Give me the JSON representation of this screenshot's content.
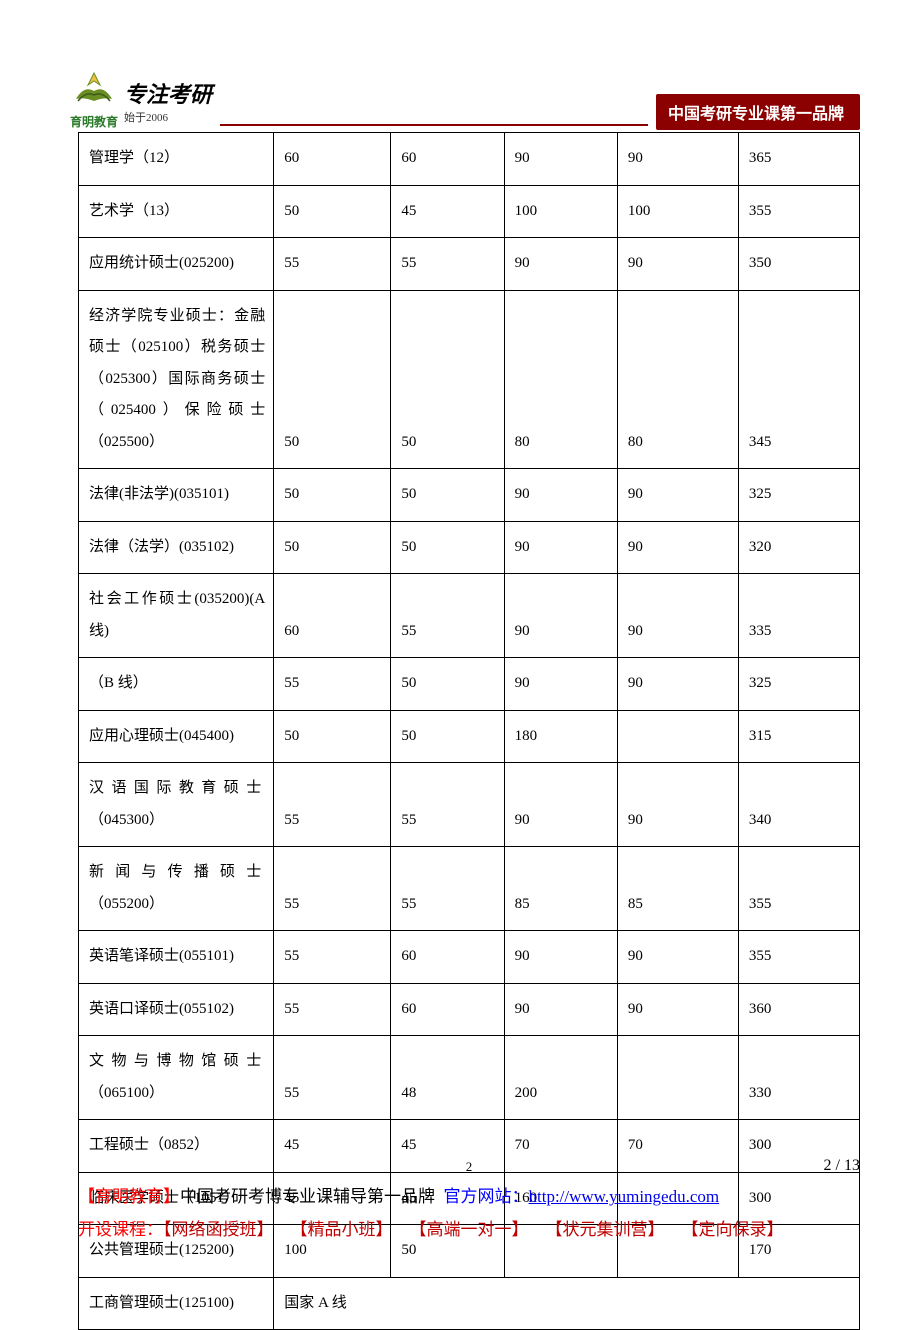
{
  "header": {
    "logo_caption": "育明教育",
    "logo_title": "专注考研",
    "logo_sub": "始于2006",
    "banner": "中国考研专业课第一品牌"
  },
  "table": {
    "col_widths": [
      "25%",
      "15%",
      "14.5%",
      "14.5%",
      "15.5%",
      "15.5%"
    ],
    "rows": [
      {
        "cells": [
          "管理学（12）",
          "60",
          "60",
          "90",
          "90",
          "365"
        ]
      },
      {
        "cells": [
          "艺术学（13）",
          "50",
          "45",
          "100",
          "100",
          "355"
        ]
      },
      {
        "cells": [
          "应用统计硕士(025200)",
          "55",
          "55",
          "90",
          "90",
          "350"
        ]
      },
      {
        "cells": [
          "经济学院专业硕士：金融硕士（025100）税务硕士（025300）国际商务硕士（025400）保险硕士（025500）",
          "50",
          "50",
          "80",
          "80",
          "345"
        ]
      },
      {
        "cells": [
          "法律(非法学)(035101)",
          "50",
          "50",
          "90",
          "90",
          "325"
        ]
      },
      {
        "cells": [
          "法律（法学）(035102)",
          "50",
          "50",
          "90",
          "90",
          "320"
        ]
      },
      {
        "cells": [
          "社会工作硕士(035200)(A 线)",
          "60",
          "55",
          "90",
          "90",
          "335"
        ]
      },
      {
        "cells": [
          "（B 线）",
          "55",
          "50",
          "90",
          "90",
          "325"
        ]
      },
      {
        "cells": [
          "应用心理硕士(045400)",
          "50",
          "50",
          "180",
          "",
          "315"
        ]
      },
      {
        "cells": [
          "汉语国际教育硕士（045300）",
          "55",
          "55",
          "90",
          "90",
          "340"
        ],
        "spaced": true
      },
      {
        "cells": [
          "新闻与传播硕士（055200）",
          "55",
          "55",
          "85",
          "85",
          "355"
        ],
        "spaced": true
      },
      {
        "cells": [
          "英语笔译硕士(055101)",
          "55",
          "60",
          "90",
          "90",
          "355"
        ]
      },
      {
        "cells": [
          "英语口译硕士(055102)",
          "55",
          "60",
          "90",
          "90",
          "360"
        ]
      },
      {
        "cells": [
          "文物与博物馆硕士（065100）",
          "55",
          "48",
          "200",
          "",
          "330"
        ],
        "spaced": true
      },
      {
        "cells": [
          "工程硕士（0852）",
          "45",
          "45",
          "70",
          "70",
          "300"
        ]
      },
      {
        "cells": [
          "临床医学硕士（1051）",
          "45",
          "45",
          "160",
          "",
          "300"
        ]
      },
      {
        "cells": [
          "公共管理硕士(125200)",
          "100",
          "50",
          "",
          "",
          "170"
        ]
      },
      {
        "cells": [
          "工商管理硕士(125100)",
          "国家 A 线"
        ],
        "merged": true
      }
    ]
  },
  "footer": {
    "page_num_center": "2",
    "page_num_right": "2 / 13",
    "line1_brand": "【育明教育】",
    "line1_text": "中国考研考博专业课辅导第一品牌",
    "line1_site_label": "官方网站：",
    "line1_url": "http://www.yumingedu.com",
    "line2_label": "开设课程：",
    "line2_items": [
      "【网络函授班】",
      "【精品小班】",
      "【高端一对一】",
      "【状元集训营】",
      "【定向保录】"
    ]
  },
  "colors": {
    "brand_red": "#8b0000",
    "text_red": "#ff0000",
    "text_blue": "#0000ff",
    "text_darkred": "#c00000",
    "link": "#0000ee",
    "logo_green": "#2a7a2a"
  }
}
